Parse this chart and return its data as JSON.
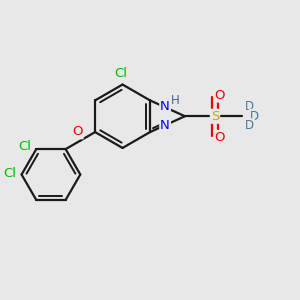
{
  "background_color": "#e8e8e8",
  "bond_color": "#1a1a1a",
  "bond_width": 1.6,
  "atom_colors": {
    "Cl": "#00bb00",
    "O": "#ee0000",
    "N": "#0000ee",
    "H": "#446688",
    "S": "#ccaa00",
    "D": "#447799",
    "C": "#1a1a1a"
  },
  "figsize": [
    3.0,
    3.0
  ],
  "dpi": 100,
  "xlim": [
    0,
    10
  ],
  "ylim": [
    0,
    10
  ]
}
